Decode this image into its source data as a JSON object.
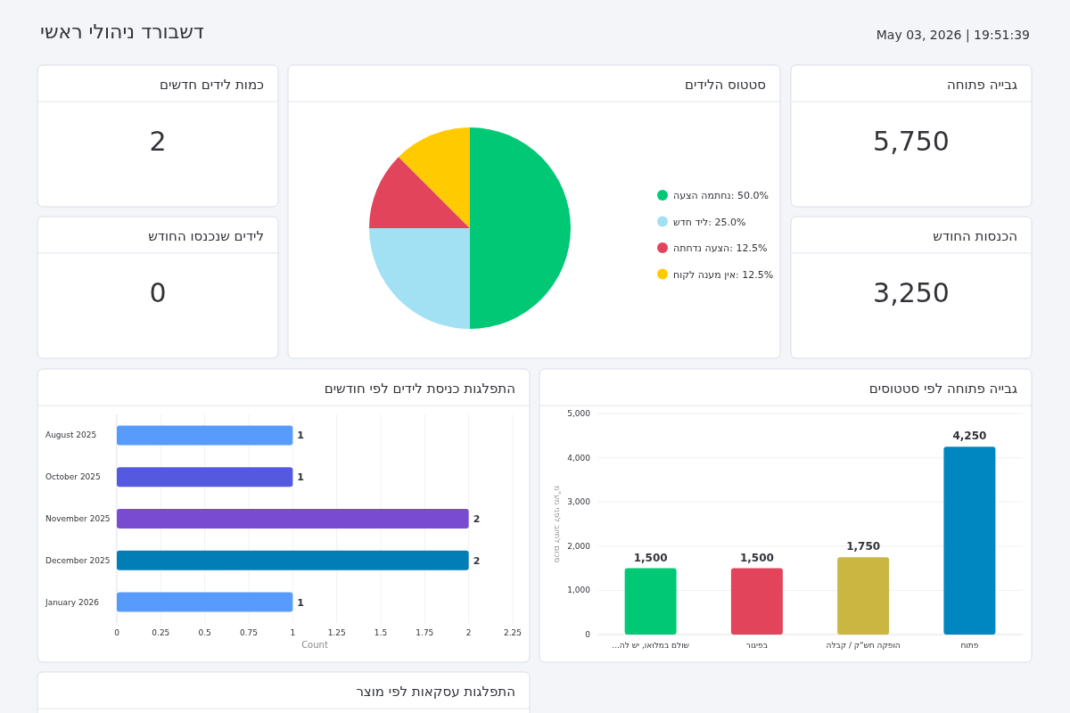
{
  "chart_data": [
    {
      "type": "other",
      "title": "דשבורד ניהולי ראשי",
      "annotations": [
        "May 03, 2026 | 19:51:39"
      ]
    },
    {
      "type": "other",
      "title": "כמות לידים חדשים",
      "annotations": [
        "2"
      ]
    },
    {
      "type": "pie",
      "title": "סטטוס הלידים",
      "categories": [
        "נחתמה הצעה",
        "ליד חדש",
        "הצעה נדחתה",
        "אין מענה לקוח"
      ],
      "values": [
        50,
        25,
        12.5,
        12.5
      ],
      "colors": [
        "#00c875",
        "#a2e0f4",
        "#e2445c",
        "#ffcb00"
      ],
      "value_labels": [
        "50.0%",
        "25.0%",
        "12.5%",
        "12.5%"
      ],
      "legend": "right"
    },
    {
      "type": "other",
      "title": "גבייה פתוחה",
      "annotations": [
        "5,750"
      ]
    },
    {
      "type": "other",
      "title": "לידים שנכנסו החודש",
      "annotations": [
        "0"
      ]
    },
    {
      "type": "other",
      "title": "הכנסות החודש",
      "annotations": [
        "3,250"
      ]
    },
    {
      "type": "bar",
      "title": "התפלגות כניסת לידים לפי חודשים",
      "orientation": "horizontal",
      "categories": [
        "August 2025",
        "October 2025",
        "November 2025",
        "December 2025",
        "January 2026"
      ],
      "values": [
        1,
        1,
        2,
        2,
        1
      ],
      "colors": [
        "#579bfc",
        "#5559df",
        "#784bd1",
        "#007eb5",
        "#579bfc"
      ],
      "xlabel": "Count",
      "xlim": [
        0,
        2.25
      ],
      "xticks": [
        0,
        0.25,
        0.5,
        0.75,
        1,
        1.25,
        1.5,
        1.75,
        2,
        2.25
      ],
      "grid": "x",
      "data_labels": true
    },
    {
      "type": "bar",
      "title": "גבייה פתוחה לפי סטטוסים",
      "categories": [
        "שולם במלואו, יש לה...",
        "בפיגור",
        "הופקה חש\"ק / קבלה",
        "פתוח"
      ],
      "values": [
        1500,
        1500,
        1750,
        4250
      ],
      "colors": [
        "#00c875",
        "#e2445c",
        "#cab641",
        "#0086c0"
      ],
      "ylabel": "סכום לחיוב לפני מע\"מ",
      "ylim": [
        0,
        5000
      ],
      "yticks": [
        0,
        {
          "value": 1000,
          "label": "1,000"
        },
        {
          "value": 2000,
          "label": "2,000"
        },
        {
          "value": 3000,
          "label": "3,000"
        },
        {
          "value": 4000,
          "label": "4,000"
        },
        {
          "value": 5000,
          "label": "5,000"
        }
      ],
      "grid": "y",
      "value_labels": [
        "1,500",
        "1,500",
        "1,750",
        "4,250"
      ]
    },
    {
      "type": "other",
      "title": "התפלגות עסקאות לפי מוצר"
    }
  ]
}
